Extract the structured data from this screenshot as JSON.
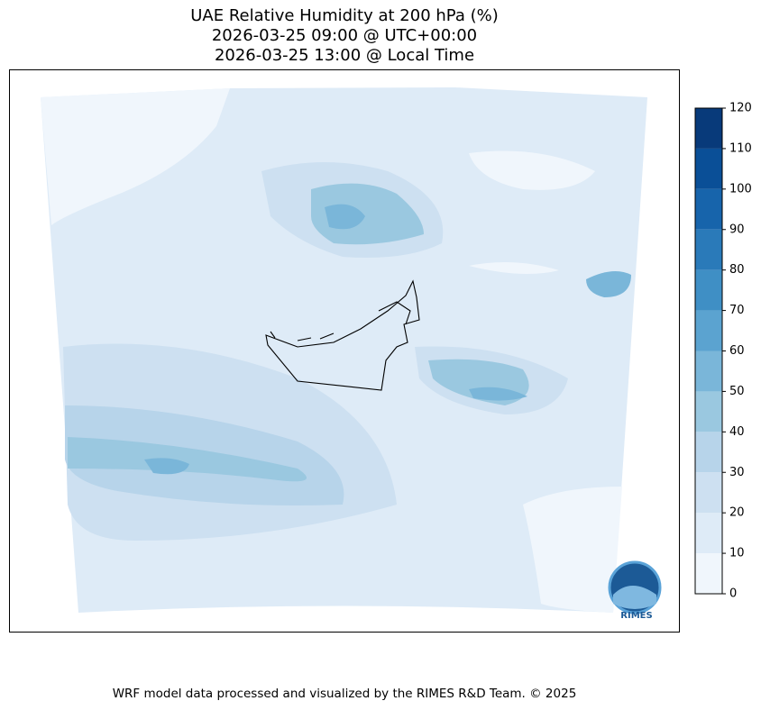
{
  "title": [
    "UAE Relative Humidity at 200 hPa (%)",
    "2026-03-25 09:00 @ UTC+00:00",
    "2026-03-25 13:00 @ Local Time"
  ],
  "colorbar": {
    "ticks": [
      0,
      10,
      20,
      30,
      40,
      50,
      60,
      70,
      80,
      90,
      100,
      110,
      120
    ],
    "colors": [
      "#f0f6fc",
      "#deebf7",
      "#cde0f1",
      "#b7d4ea",
      "#9ac8e0",
      "#7ab6d9",
      "#5ba3d0",
      "#3f8fc5",
      "#2a7ab9",
      "#1764ab",
      "#0a4f97",
      "#083a7a"
    ]
  },
  "logo": "RIMES",
  "footer": "WRF model data processed and visualized by the RIMES R&D Team. © 2025"
}
